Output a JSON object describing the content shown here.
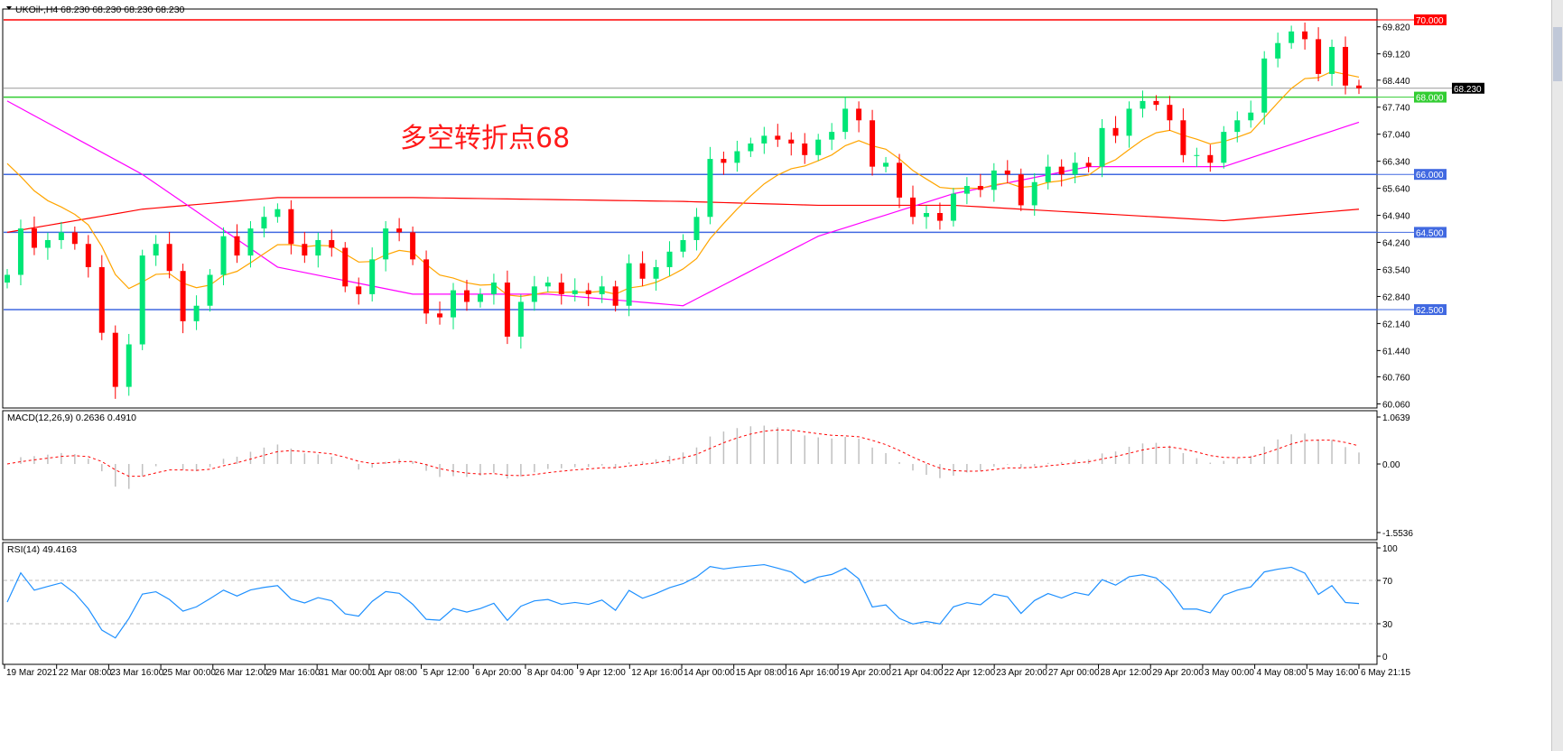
{
  "header": {
    "title": "UKOil-,H4  68.230 68.230 68.230 68.230"
  },
  "annotation": "多空转折点68",
  "colors": {
    "bull": "#00e676",
    "bear": "#ff0000",
    "fast_ma": "#ffa500",
    "mid_ma": "#ff00ff",
    "slow_ma": "#ff0000",
    "level_red": "#ff0000",
    "level_green": "#32cd32",
    "level_blue": "#4169e1",
    "macd_hist": "#c0c0c0",
    "macd_signal": "#ff0000",
    "rsi": "#1e90ff",
    "current_price": "#000000"
  },
  "chart_data": [
    {
      "type": "candlestick",
      "symbol": "UKOil-",
      "timeframe": "H4",
      "ylim": [
        60.06,
        70.0
      ],
      "y_ticks": [
        "69.820",
        "69.120",
        "68.440",
        "67.740",
        "67.040",
        "66.340",
        "65.640",
        "64.940",
        "64.240",
        "63.540",
        "62.840",
        "62.140",
        "61.440",
        "60.760",
        "60.060"
      ],
      "closes": [
        63.4,
        64.6,
        64.1,
        64.3,
        64.5,
        64.2,
        63.6,
        61.9,
        60.5,
        61.6,
        63.9,
        64.2,
        63.5,
        62.2,
        62.6,
        63.4,
        64.4,
        63.9,
        64.6,
        64.9,
        65.1,
        64.2,
        63.9,
        64.3,
        64.1,
        63.1,
        62.9,
        63.8,
        64.6,
        64.5,
        63.8,
        62.4,
        62.3,
        63.0,
        62.7,
        62.9,
        63.2,
        61.8,
        62.7,
        63.1,
        63.2,
        62.9,
        63.0,
        62.9,
        63.1,
        62.6,
        63.7,
        63.3,
        63.6,
        64.0,
        64.3,
        64.9,
        66.4,
        66.3,
        66.6,
        66.8,
        67.0,
        66.9,
        66.8,
        66.5,
        66.9,
        67.1,
        67.7,
        67.4,
        66.2,
        66.3,
        65.4,
        64.9,
        65.0,
        64.8,
        65.5,
        65.7,
        65.6,
        66.1,
        66.0,
        65.2,
        65.8,
        66.2,
        66.0,
        66.3,
        66.2,
        67.2,
        67.0,
        67.7,
        67.9,
        67.8,
        67.4,
        66.5,
        66.5,
        66.3,
        67.1,
        67.4,
        67.6,
        69.0,
        69.4,
        69.7,
        69.5,
        68.6,
        69.3,
        68.3,
        68.23
      ],
      "mid_ma": [
        67.9,
        66.0,
        63.6,
        62.9,
        62.9,
        62.6,
        64.4,
        65.5,
        66.2,
        66.2,
        67.35
      ],
      "slow_ma": [
        64.5,
        65.1,
        65.4,
        65.4,
        65.35,
        65.3,
        65.2,
        65.2,
        65.0,
        64.8,
        65.1
      ],
      "levels": [
        {
          "value": 70.0,
          "label": "70.000",
          "color": "#ff0000"
        },
        {
          "value": 68.0,
          "label": "68.000",
          "color": "#32cd32"
        },
        {
          "value": 66.0,
          "label": "66.000",
          "color": "#4169e1"
        },
        {
          "value": 64.5,
          "label": "64.500",
          "color": "#4169e1"
        },
        {
          "value": 62.5,
          "label": "62.500",
          "color": "#4169e1"
        }
      ],
      "current_price": {
        "value": 68.23,
        "label": "68.230"
      }
    },
    {
      "type": "bar+line",
      "title": "MACD(12,26,9) 0.2636 0.4910",
      "ylim": [
        -1.5536,
        1.0639
      ],
      "y_ticks": [
        "1.0639",
        "0.00",
        "-1.5536"
      ]
    },
    {
      "type": "line",
      "title": "RSI(14) 49.4163",
      "ylim": [
        0,
        100
      ],
      "levels": [
        70,
        30
      ],
      "y_ticks": [
        "100",
        "70",
        "30",
        "0"
      ]
    }
  ],
  "time_axis": [
    "19 Mar 2021",
    "22 Mar 08:00",
    "23 Mar 16:00",
    "25 Mar 00:00",
    "26 Mar 12:00",
    "29 Mar 16:00",
    "31 Mar 00:00",
    "1 Apr 08:00",
    "5 Apr 12:00",
    "6 Apr 20:00",
    "8 Apr 04:00",
    "9 Apr 12:00",
    "12 Apr 16:00",
    "14 Apr 00:00",
    "15 Apr 08:00",
    "16 Apr 16:00",
    "19 Apr 20:00",
    "21 Apr 04:00",
    "22 Apr 12:00",
    "23 Apr 20:00",
    "27 Apr 00:00",
    "28 Apr 12:00",
    "29 Apr 20:00",
    "3 May 00:00",
    "4 May 08:00",
    "5 May 16:00",
    "6 May 21:15"
  ]
}
